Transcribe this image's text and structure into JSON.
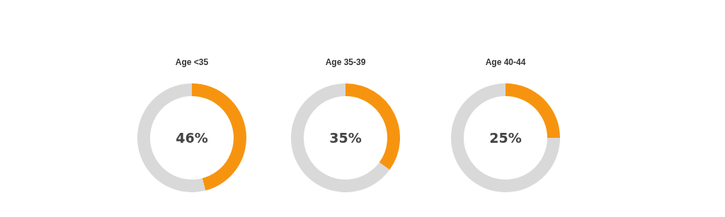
{
  "chart_data": [
    {
      "type": "donut",
      "title": "Age <35",
      "categories": [
        null,
        null
      ],
      "values": [
        46,
        54
      ],
      "colors": [
        "#f7940f",
        "#d9d9d9"
      ],
      "value_labels": [
        "46%",
        null
      ]
    },
    {
      "type": "donut",
      "title": "Age 35-39",
      "categories": [
        null,
        null
      ],
      "values": [
        35,
        65
      ],
      "colors": [
        "#f7940f",
        "#d9d9d9"
      ],
      "value_labels": [
        "35%",
        null
      ]
    },
    {
      "type": "donut",
      "title": "Age 40-44",
      "categories": [
        null,
        null
      ],
      "values": [
        25,
        75
      ],
      "colors": [
        "#f7940f",
        "#d9d9d9"
      ],
      "value_labels": [
        "25%",
        null
      ]
    }
  ]
}
